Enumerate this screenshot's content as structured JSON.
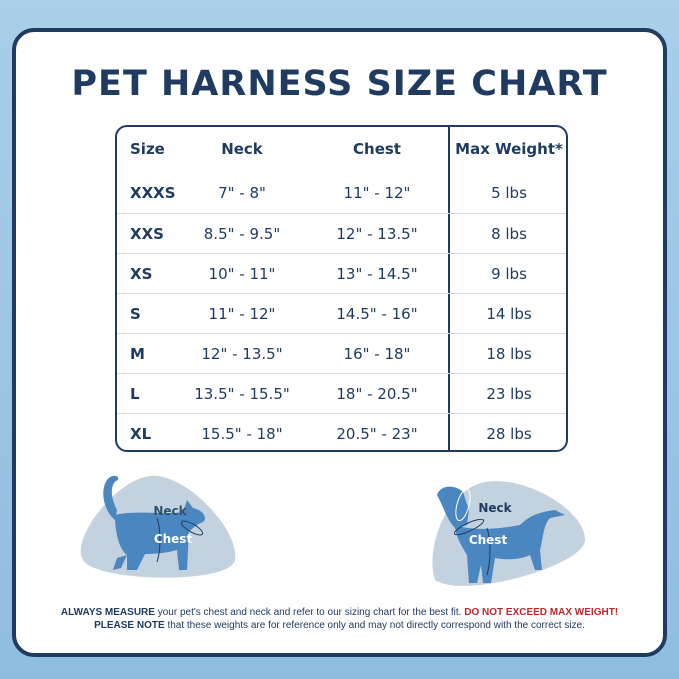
{
  "title": "PET HARNESS SIZE CHART",
  "table": {
    "headers": [
      "Size",
      "Neck",
      "Chest",
      "Max Weight*"
    ],
    "rows": [
      [
        "XXXS",
        "7\" - 8\"",
        "11\" - 12\"",
        "5 lbs"
      ],
      [
        "XXS",
        "8.5\" - 9.5\"",
        "12\" - 13.5\"",
        "8 lbs"
      ],
      [
        "XS",
        "10\" - 11\"",
        "13\" - 14.5\"",
        "9 lbs"
      ],
      [
        "S",
        "11\" - 12\"",
        "14.5\" - 16\"",
        "14 lbs"
      ],
      [
        "M",
        "12\" - 13.5\"",
        "16\" - 18\"",
        "18 lbs"
      ],
      [
        "L",
        "13.5\" - 15.5\"",
        "18\" - 20.5\"",
        "23 lbs"
      ],
      [
        "XL",
        "15.5\" - 18\"",
        "20.5\" - 23\"",
        "28 lbs"
      ]
    ]
  },
  "illustrations": {
    "cat": {
      "neck_label": "Neck",
      "chest_label": "Chest"
    },
    "dog": {
      "neck_label": "Neck",
      "chest_label": "Chest"
    }
  },
  "footer": {
    "line1_bold": "ALWAYS MEASURE",
    "line1_text": " your pet's chest and neck and refer  to our sizing chart for the best fit. ",
    "line1_warning": "DO NOT EXCEED MAX WEIGHT!",
    "line2_bold": "PLEASE NOTE",
    "line2_text": " that these weights are for reference only and may not directly correspond with the correct size."
  },
  "colors": {
    "navy": "#1f3c60",
    "pet_blue": "#4a86c0",
    "blob_gray": "#c3d2de",
    "warning_red": "#c0282d",
    "background": "#9cc6e6"
  }
}
